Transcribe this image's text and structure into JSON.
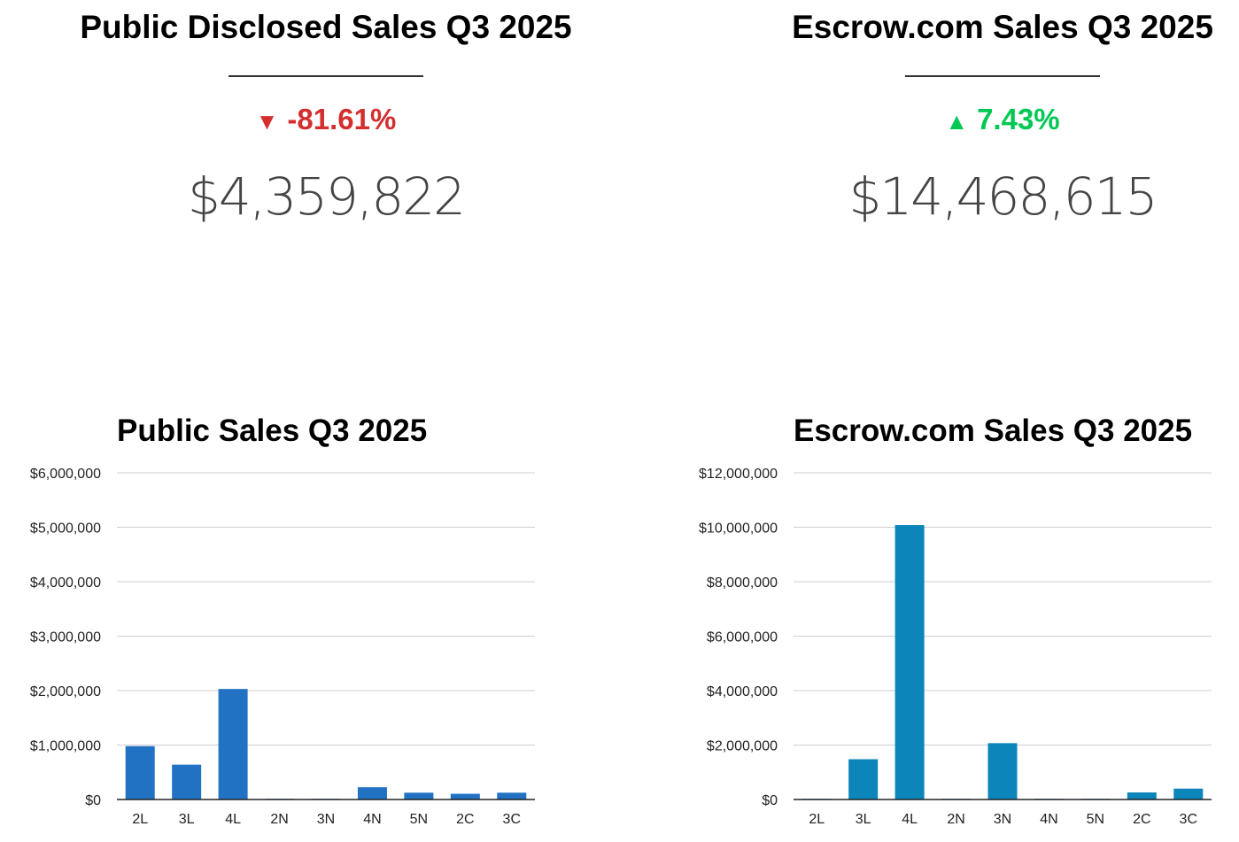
{
  "kpis": {
    "public": {
      "title": "Public Disclosed Sales Q3 2025",
      "change": "-81.61%",
      "direction": "down",
      "color": "#d32f2f",
      "value": "$4,359,822"
    },
    "escrow": {
      "title": "Escrow.com Sales Q3 2025",
      "change": "7.43%",
      "direction": "up",
      "color": "#00c853",
      "value": "$14,468,615"
    }
  },
  "chart_data": [
    {
      "type": "bar",
      "title": "Public Sales Q3 2025",
      "categories": [
        "2L",
        "3L",
        "4L",
        "2N",
        "3N",
        "4N",
        "5N",
        "2C",
        "3C"
      ],
      "values": [
        980000,
        640000,
        2030000,
        5000,
        5000,
        225000,
        125000,
        105000,
        125000
      ],
      "ylim": [
        0,
        6000000
      ],
      "yticks": [
        "$0",
        "$1,000,000",
        "$2,000,000",
        "$3,000,000",
        "$4,000,000",
        "$5,000,000",
        "$6,000,000"
      ],
      "color": "#2272c3",
      "grid": true,
      "xlabel": "",
      "ylabel": ""
    },
    {
      "type": "bar",
      "title": "Escrow.com Sales Q3 2025",
      "categories": [
        "2L",
        "3L",
        "4L",
        "2N",
        "3N",
        "4N",
        "5N",
        "2C",
        "3C"
      ],
      "values": [
        0,
        1480000,
        10080000,
        0,
        2070000,
        15000,
        10000,
        260000,
        400000
      ],
      "ylim": [
        0,
        12000000
      ],
      "yticks": [
        "$0",
        "$2,000,000",
        "$4,000,000",
        "$6,000,000",
        "$8,000,000",
        "$10,000,000",
        "$12,000,000"
      ],
      "color": "#0c85ba",
      "grid": true,
      "xlabel": "",
      "ylabel": ""
    }
  ]
}
